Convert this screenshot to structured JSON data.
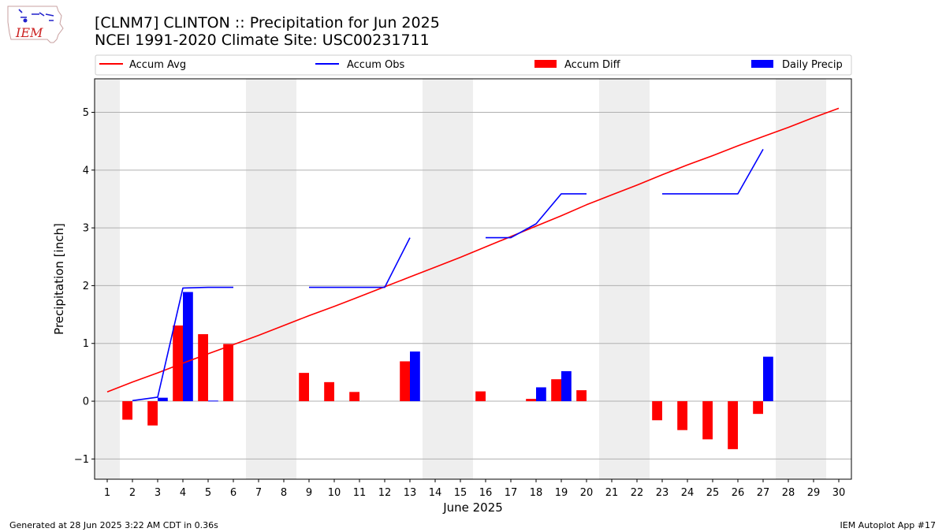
{
  "header": {
    "title_line1": "[CLNM7] CLINTON :: Precipitation for Jun 2025",
    "title_line2": "NCEI 1991-2020 Climate Site: USC00231711"
  },
  "logo": {
    "text": "IEM",
    "icon": "iowa-state-logo-icon"
  },
  "footer": {
    "generated": "Generated at 28 Jun 2025 3:22 AM CDT in 0.36s",
    "app": "IEM Autoplot App #17"
  },
  "colors": {
    "accum_avg": "#ff0000",
    "accum_obs": "#0000ff",
    "accum_diff": "#ff0000",
    "daily_precip": "#0000ff",
    "weekend_shade": "#eeeeee",
    "grid": "#b0b0b0"
  },
  "chart_data": {
    "type": "bar",
    "xlabel": "June 2025",
    "ylabel": "Precipitation [inch]",
    "xlim": [
      0.5,
      30.5
    ],
    "ylim": [
      -1.35,
      5.58
    ],
    "x_ticks": [
      1,
      2,
      3,
      4,
      5,
      6,
      7,
      8,
      9,
      10,
      11,
      12,
      13,
      14,
      15,
      16,
      17,
      18,
      19,
      20,
      21,
      22,
      23,
      24,
      25,
      26,
      27,
      28,
      29,
      30
    ],
    "y_ticks": [
      -1,
      0,
      1,
      2,
      3,
      4,
      5
    ],
    "y_tick_labels": [
      "−1",
      "0",
      "1",
      "2",
      "3",
      "4",
      "5"
    ],
    "grid": "horizontal",
    "legend_position": "top",
    "shaded_days": [
      [
        1,
        1
      ],
      [
        7,
        8
      ],
      [
        14,
        15
      ],
      [
        21,
        22
      ],
      [
        28,
        29
      ]
    ],
    "series": [
      {
        "name": "Accum Avg",
        "kind": "line",
        "x": [
          1,
          2,
          3,
          4,
          5,
          6,
          7,
          8,
          9,
          10,
          11,
          12,
          13,
          14,
          15,
          16,
          17,
          18,
          19,
          20,
          21,
          22,
          23,
          24,
          25,
          26,
          27,
          28,
          29,
          30
        ],
        "values": [
          0.16,
          0.33,
          0.49,
          0.66,
          0.82,
          0.98,
          1.14,
          1.31,
          1.48,
          1.64,
          1.81,
          1.98,
          2.15,
          2.32,
          2.49,
          2.67,
          2.85,
          3.03,
          3.21,
          3.4,
          3.57,
          3.74,
          3.92,
          4.09,
          4.25,
          4.42,
          4.58,
          4.74,
          4.91,
          5.07
        ]
      },
      {
        "name": "Accum Obs",
        "kind": "line",
        "x": [
          2,
          3,
          4,
          5,
          6,
          7,
          8,
          9,
          10,
          11,
          12,
          13,
          14,
          15,
          16,
          17,
          18,
          19,
          20,
          21,
          22,
          23,
          24,
          25,
          26,
          27
        ],
        "values": [
          0.01,
          0.07,
          1.96,
          1.97,
          1.97,
          null,
          null,
          1.97,
          1.97,
          1.97,
          1.97,
          2.83,
          null,
          null,
          2.83,
          2.83,
          3.07,
          3.59,
          3.59,
          null,
          null,
          3.59,
          3.59,
          3.59,
          3.59,
          4.36
        ]
      },
      {
        "name": "Accum Diff",
        "kind": "bar",
        "x": [
          2,
          3,
          4,
          5,
          6,
          9,
          10,
          11,
          13,
          16,
          18,
          19,
          20,
          23,
          24,
          25,
          26,
          27
        ],
        "values": [
          -0.32,
          -0.42,
          1.31,
          1.16,
          0.99,
          0.49,
          0.33,
          0.16,
          0.69,
          0.17,
          0.04,
          0.38,
          0.19,
          -0.33,
          -0.5,
          -0.66,
          -0.83,
          -0.22
        ]
      },
      {
        "name": "Daily Precip",
        "kind": "bar",
        "x": [
          3,
          4,
          5,
          13,
          18,
          19,
          27
        ],
        "values": [
          0.06,
          1.89,
          0.01,
          0.86,
          0.24,
          0.52,
          0.77
        ]
      }
    ]
  }
}
